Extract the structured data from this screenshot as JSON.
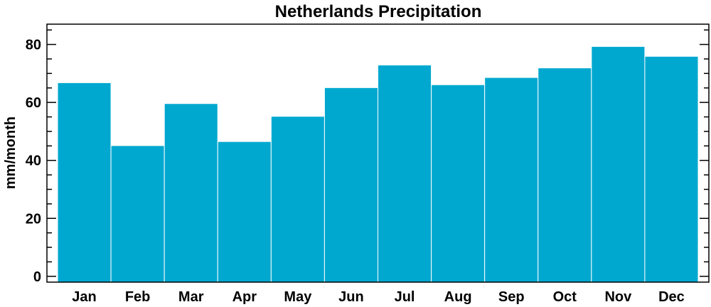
{
  "chart_data": {
    "type": "bar",
    "title": "Netherlands Precipitation",
    "ylabel": "mm/month",
    "xlabel": "",
    "categories": [
      "Jan",
      "Feb",
      "Mar",
      "Apr",
      "May",
      "Jun",
      "Jul",
      "Aug",
      "Sep",
      "Oct",
      "Nov",
      "Dec"
    ],
    "values": [
      66.8,
      45.1,
      59.6,
      46.5,
      55.2,
      65.1,
      72.9,
      66.1,
      68.6,
      71.9,
      79.3,
      75.9
    ],
    "ylim": [
      -2,
      87
    ],
    "yticks": [
      0,
      20,
      40,
      60,
      80
    ],
    "yminor_step": 5,
    "bar_color": "#00a8d0",
    "grid": false,
    "legend": "none"
  }
}
